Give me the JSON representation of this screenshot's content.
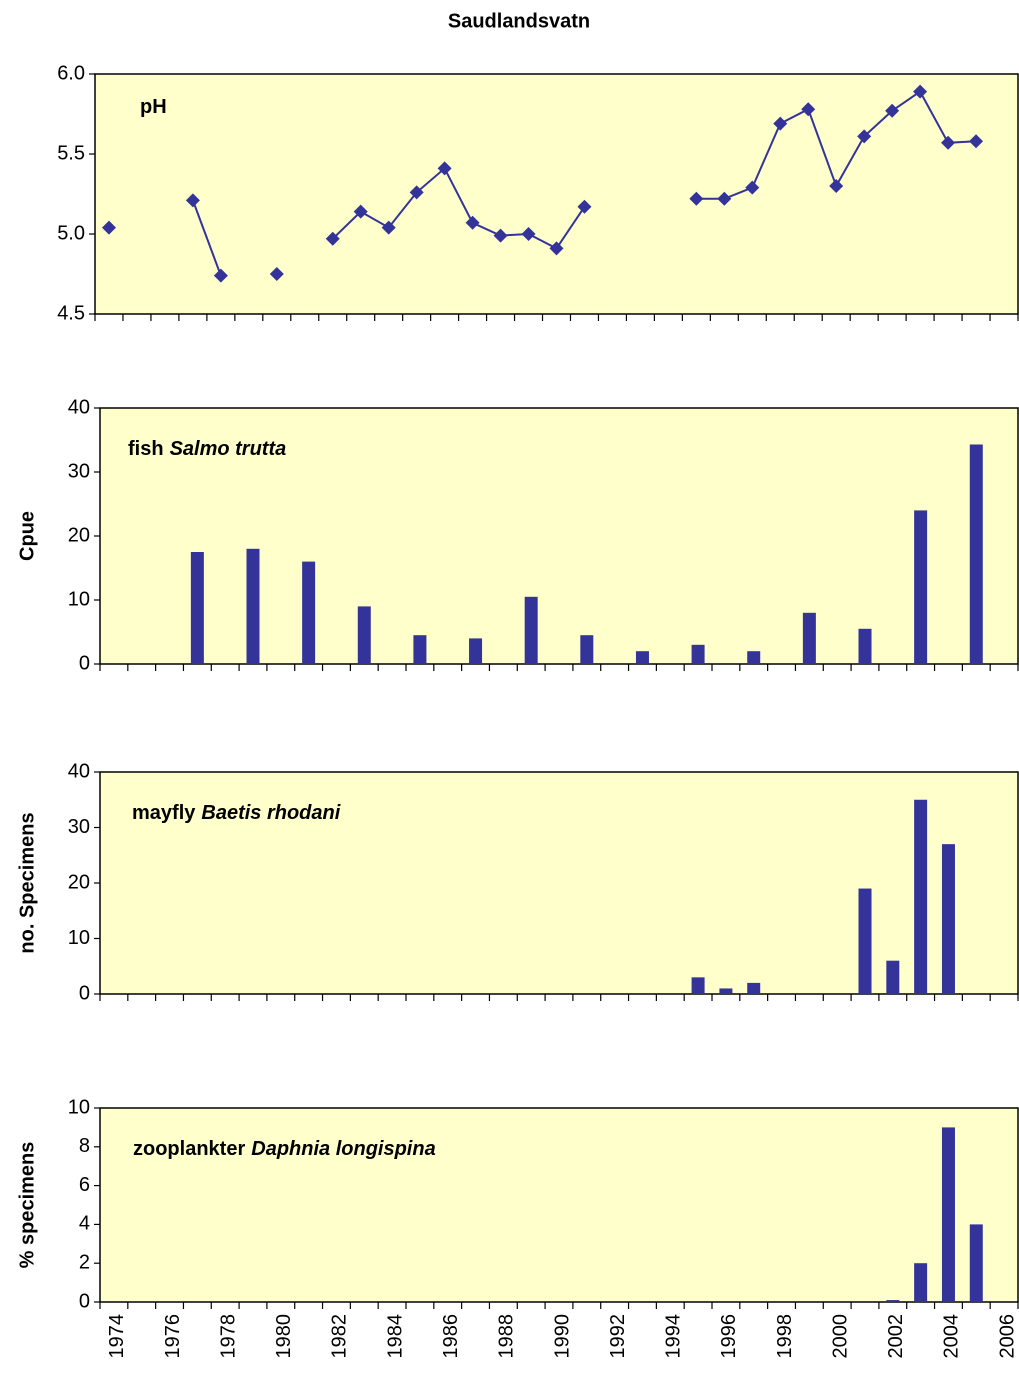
{
  "chart_data": [
    {
      "type": "line",
      "title": "Saudlandsvatn",
      "label": "pH",
      "color": "#333399",
      "background": "#ffffcc",
      "values": [
        5.04,
        null,
        null,
        5.21,
        4.74,
        null,
        4.75,
        null,
        4.97,
        5.14,
        5.04,
        5.26,
        5.41,
        5.07,
        4.99,
        5.0,
        4.91,
        5.17,
        null,
        null,
        null,
        5.22,
        5.22,
        5.29,
        5.69,
        5.78,
        5.3,
        5.61,
        5.77,
        5.89,
        5.57,
        5.58,
        null
      ],
      "ylim": [
        4.5,
        6.0
      ],
      "yticks": [
        4.5,
        {
          "value": 5.0,
          "label": "5.0"
        },
        5.5,
        {
          "value": 6.0,
          "label": "6.0"
        }
      ]
    },
    {
      "type": "bar",
      "label": "fish",
      "species": "Salmo trutta",
      "y_label": "Cpue",
      "color": "#333399",
      "background": "#ffffcc",
      "values": [
        null,
        null,
        null,
        17.5,
        null,
        18,
        null,
        16,
        null,
        9,
        null,
        4.5,
        null,
        4,
        null,
        10.5,
        null,
        4.5,
        null,
        2,
        null,
        3,
        null,
        2,
        null,
        8,
        null,
        5.5,
        null,
        24,
        null,
        34.3,
        null
      ],
      "ylim": [
        0,
        40
      ],
      "yticks": [
        0,
        10,
        20,
        30,
        40
      ]
    },
    {
      "type": "bar",
      "label": "mayfly",
      "species": "Baetis rhodani",
      "y_label": "no. Specimens",
      "color": "#333399",
      "background": "#ffffcc",
      "values": [
        null,
        null,
        null,
        null,
        null,
        null,
        null,
        null,
        null,
        null,
        null,
        null,
        null,
        null,
        null,
        null,
        null,
        null,
        null,
        null,
        null,
        3,
        1,
        2,
        null,
        null,
        null,
        19,
        6,
        35,
        27,
        null,
        null
      ],
      "ylim": [
        0,
        40
      ],
      "yticks": [
        0,
        10,
        20,
        30,
        40
      ]
    },
    {
      "type": "bar",
      "label": "zooplankter",
      "species": "Daphnia longispina",
      "y_label": "% specimens",
      "color": "#333399",
      "background": "#ffffcc",
      "categories": [
        "1974",
        null,
        "1976",
        null,
        "1978",
        null,
        "1980",
        null,
        "1982",
        null,
        "1984",
        null,
        "1986",
        null,
        "1988",
        null,
        "1990",
        null,
        "1992",
        null,
        "1994",
        null,
        "1996",
        null,
        "1998",
        null,
        "2000",
        null,
        "2002",
        null,
        "2004",
        null,
        "2006"
      ],
      "values": [
        null,
        null,
        null,
        null,
        null,
        null,
        null,
        null,
        null,
        null,
        null,
        null,
        null,
        null,
        null,
        null,
        null,
        null,
        null,
        null,
        null,
        null,
        null,
        null,
        null,
        null,
        null,
        null,
        0.1,
        2,
        9,
        4,
        null
      ],
      "ylim": [
        0,
        10
      ],
      "yticks": [
        0,
        2,
        4,
        6,
        8,
        10
      ]
    }
  ]
}
